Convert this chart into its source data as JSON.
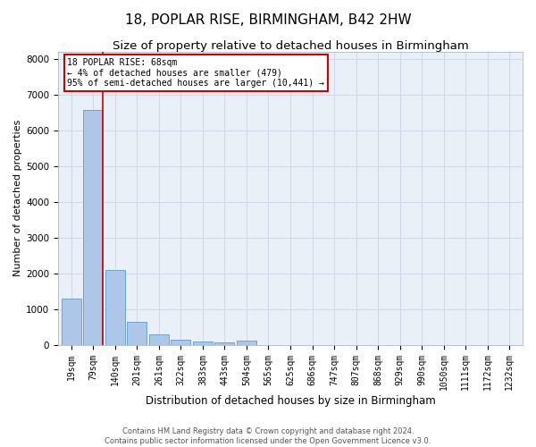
{
  "title": "18, POPLAR RISE, BIRMINGHAM, B42 2HW",
  "subtitle": "Size of property relative to detached houses in Birmingham",
  "xlabel": "Distribution of detached houses by size in Birmingham",
  "ylabel": "Number of detached properties",
  "categories": [
    "19sqm",
    "79sqm",
    "140sqm",
    "201sqm",
    "261sqm",
    "322sqm",
    "383sqm",
    "443sqm",
    "504sqm",
    "565sqm",
    "625sqm",
    "686sqm",
    "747sqm",
    "807sqm",
    "868sqm",
    "929sqm",
    "990sqm",
    "1050sqm",
    "1111sqm",
    "1172sqm",
    "1232sqm"
  ],
  "values": [
    1300,
    6580,
    2080,
    650,
    280,
    130,
    95,
    75,
    110,
    0,
    0,
    0,
    0,
    0,
    0,
    0,
    0,
    0,
    0,
    0,
    0
  ],
  "bar_color": "#aec6e8",
  "bar_edge_color": "#5b9bd5",
  "annotation_box_text": "18 POPLAR RISE: 68sqm\n← 4% of detached houses are smaller (479)\n95% of semi-detached houses are larger (10,441) →",
  "annotation_box_color": "#ffffff",
  "annotation_box_edge_color": "#cc0000",
  "vline_color": "#cc0000",
  "vline_x_idx": 1,
  "ylim": [
    0,
    8200
  ],
  "yticks": [
    0,
    1000,
    2000,
    3000,
    4000,
    5000,
    6000,
    7000,
    8000
  ],
  "grid_color": "#d0d8e8",
  "background_color": "#eaf0f8",
  "title_fontsize": 11,
  "subtitle_fontsize": 9.5,
  "axis_label_fontsize": 8,
  "tick_fontsize": 7,
  "footer_text": "Contains HM Land Registry data © Crown copyright and database right 2024.\nContains public sector information licensed under the Open Government Licence v3.0."
}
